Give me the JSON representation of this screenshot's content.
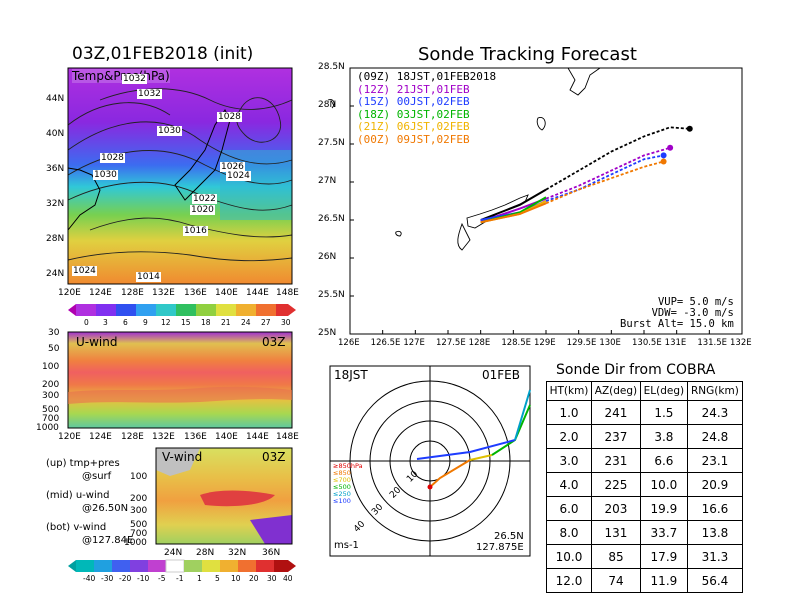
{
  "left_top": {
    "title": "03Z,01FEB2018 (init)",
    "panel_label": "Temp&Pres(hPa)",
    "lat_labels": [
      "44N",
      "40N",
      "36N",
      "32N",
      "28N",
      "24N"
    ],
    "lon_labels": [
      "120E",
      "124E",
      "128E",
      "132E",
      "136E",
      "140E",
      "144E",
      "148E"
    ],
    "pressure_labels": [
      "1032",
      "1032",
      "1030",
      "1028",
      "1028",
      "1026",
      "1024",
      "1030",
      "1022",
      "1020",
      "1016",
      "1024",
      "1014",
      "1016"
    ],
    "colorbar_ticks": [
      "0",
      "3",
      "6",
      "9",
      "12",
      "15",
      "18",
      "21",
      "24",
      "27",
      "30"
    ]
  },
  "u_wind": {
    "label": "U-wind",
    "time": "03Z",
    "levels": [
      "30",
      "50",
      "100",
      "200",
      "300",
      "500",
      "700",
      "1000"
    ],
    "lon_labels": [
      "120E",
      "124E",
      "128E",
      "132E",
      "136E",
      "140E",
      "144E",
      "148E"
    ]
  },
  "v_wind": {
    "label": "V-wind",
    "time": "03Z",
    "levels": [
      "100",
      "200",
      "300",
      "500",
      "700",
      "1000"
    ],
    "lat_labels": [
      "24N",
      "28N",
      "32N",
      "36N"
    ],
    "colorbar_ticks": [
      "-40",
      "-30",
      "-20",
      "-10",
      "-5",
      "-1",
      "1",
      "5",
      "10",
      "20",
      "30",
      "40"
    ]
  },
  "legend_notes": [
    {
      "a": "(up) tmp+pres",
      "b": "@surf"
    },
    {
      "a": "(mid) u-wind",
      "b": "@26.50N"
    },
    {
      "a": "(bot) v-wind",
      "b": "@127.84E"
    }
  ],
  "track": {
    "title": "Sonde Tracking Forecast",
    "lat_labels": [
      "28.5N",
      "28N",
      "27.5N",
      "27N",
      "26.5N",
      "26N",
      "25.5N",
      "25N"
    ],
    "lon_labels": [
      "126E",
      "126.5E",
      "127E",
      "127.5E",
      "128E",
      "128.5E",
      "129E",
      "129.5E",
      "130E",
      "130.5E",
      "131E",
      "131.5E",
      "132E"
    ],
    "legend": [
      {
        "code": "(09Z)",
        "text": "18JST,01FEB2018",
        "color": "#000000"
      },
      {
        "code": "(12Z)",
        "text": "21JST,01FEB",
        "color": "#a000c8"
      },
      {
        "code": "(15Z)",
        "text": "00JST,02FEB",
        "color": "#1e3cff"
      },
      {
        "code": "(18Z)",
        "text": "03JST,02FEB",
        "color": "#00b400"
      },
      {
        "code": "(21Z)",
        "text": "06JST,02FEB",
        "color": "#f0b400"
      },
      {
        "code": "(00Z)",
        "text": "09JST,02FEB",
        "color": "#f07800"
      }
    ],
    "params": [
      "VUP= 5.0 m/s",
      "VDW= -3.0 m/s",
      "Burst Alt= 15.0 km"
    ]
  },
  "hodo": {
    "top_left": "18JST",
    "top_right": "01FEB",
    "range_labels": [
      "10",
      "20",
      "30",
      "40"
    ],
    "level_legend": [
      {
        "text": "≥850hPa",
        "color": "#e00000"
      },
      {
        "text": "≤850",
        "color": "#f07800"
      },
      {
        "text": "≤700",
        "color": "#e0c000"
      },
      {
        "text": "≤500",
        "color": "#00b400"
      },
      {
        "text": "≤250",
        "color": "#00a0c8"
      },
      {
        "text": "≤100",
        "color": "#1e3cff"
      }
    ],
    "unit": "ms-1",
    "loc_lat": "26.5N",
    "loc_lon": "127.875E"
  },
  "cobra": {
    "title": "Sonde Dir from COBRA",
    "headers": [
      "HT(km)",
      "AZ(deg)",
      "EL(deg)",
      "RNG(km)"
    ],
    "rows": [
      [
        "1.0",
        "241",
        "1.5",
        "24.3"
      ],
      [
        "2.0",
        "237",
        "3.8",
        "24.8"
      ],
      [
        "3.0",
        "231",
        "6.6",
        "23.1"
      ],
      [
        "4.0",
        "225",
        "10.0",
        "20.9"
      ],
      [
        "6.0",
        "203",
        "19.9",
        "16.6"
      ],
      [
        "8.0",
        "131",
        "33.7",
        "13.8"
      ],
      [
        "10.0",
        "85",
        "17.9",
        "31.3"
      ],
      [
        "12.0",
        "74",
        "11.9",
        "56.4"
      ]
    ]
  },
  "chart_data": [
    {
      "type": "line",
      "title": "Sonde Tracking Forecast",
      "xlim": [
        126,
        132
      ],
      "ylim": [
        25,
        28.5
      ],
      "series": [
        {
          "name": "(09Z) 18JST,01FEB2018",
          "color": "#000000",
          "x": [
            128.0,
            128.6,
            129.0,
            129.5,
            130.0,
            130.5,
            130.9,
            131.2
          ],
          "y": [
            26.5,
            26.7,
            26.9,
            27.15,
            27.4,
            27.6,
            27.72,
            27.7
          ]
        },
        {
          "name": "(12Z) 21JST,01FEB",
          "color": "#a000c8",
          "x": [
            128.0,
            128.6,
            129.0,
            129.5,
            130.0,
            130.5,
            130.9
          ],
          "y": [
            26.48,
            26.65,
            26.78,
            26.95,
            27.15,
            27.35,
            27.45
          ]
        },
        {
          "name": "(15Z) 00JST,02FEB",
          "color": "#1e3cff",
          "x": [
            128.0,
            128.6,
            129.0,
            129.5,
            130.0,
            130.5,
            130.8
          ],
          "y": [
            26.5,
            26.6,
            26.75,
            26.9,
            27.1,
            27.3,
            27.35
          ]
        },
        {
          "name": "(18Z) 03JST,02FEB",
          "color": "#00b400",
          "x": [
            128.0,
            128.6,
            129.0
          ],
          "y": [
            26.47,
            26.6,
            26.8
          ]
        },
        {
          "name": "(21Z) 06JST,02FEB",
          "color": "#f0b400",
          "x": [
            128.0,
            128.6,
            129.0
          ],
          "y": [
            26.47,
            26.58,
            26.75
          ]
        },
        {
          "name": "(00Z) 09JST,02FEB",
          "color": "#f07800",
          "x": [
            128.0,
            128.6,
            129.0,
            129.5,
            130.0,
            130.5,
            130.8
          ],
          "y": [
            26.47,
            26.58,
            26.72,
            26.9,
            27.05,
            27.2,
            27.27
          ]
        }
      ]
    },
    {
      "type": "table",
      "title": "Sonde Dir from COBRA",
      "columns": [
        "HT(km)",
        "AZ(deg)",
        "EL(deg)",
        "RNG(km)"
      ],
      "rows": [
        [
          1.0,
          241,
          1.5,
          24.3
        ],
        [
          2.0,
          237,
          3.8,
          24.8
        ],
        [
          3.0,
          231,
          6.6,
          23.1
        ],
        [
          4.0,
          225,
          10.0,
          20.9
        ],
        [
          6.0,
          203,
          19.9,
          16.6
        ],
        [
          8.0,
          131,
          33.7,
          13.8
        ],
        [
          10.0,
          85,
          17.9,
          31.3
        ],
        [
          12.0,
          74,
          11.9,
          56.4
        ]
      ]
    }
  ]
}
